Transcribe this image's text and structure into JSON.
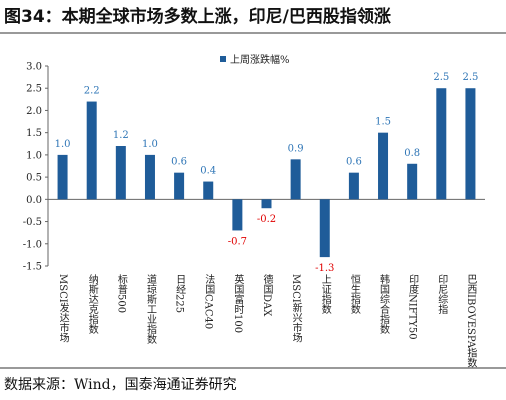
{
  "chart_data": {
    "type": "bar",
    "title": "图34：本期全球市场多数上涨，印尼/巴西股指领涨",
    "source": "数据来源：Wind，国泰海通证券研究",
    "categories": [
      "MSCI发达市场",
      "纳斯达克指数",
      "标普500",
      "道琼斯工业指数",
      "日经225",
      "法国CAC40",
      "英国富时100",
      "德国DAX",
      "MSCI新兴市场",
      "上证指数",
      "恒生指数",
      "韩国综合指数",
      "印度NIFTY50",
      "印尼综指",
      "巴西IBOVESPA指数"
    ],
    "series": [
      {
        "name": "上周涨跌幅%",
        "color": "#1f5c99",
        "values": [
          1.0,
          2.2,
          1.2,
          1.0,
          0.6,
          0.4,
          -0.7,
          -0.2,
          0.9,
          -1.3,
          0.6,
          1.5,
          0.8,
          2.5,
          2.5
        ],
        "value_labels": [
          "1.0",
          "2.2",
          "1.2",
          "1.0",
          "0.6",
          "0.4",
          "-0.7",
          "-0.2",
          "0.9",
          "-1.3",
          "0.6",
          "1.5",
          "0.8",
          "2.5",
          "2.5"
        ]
      }
    ],
    "ylim": [
      -1.5,
      3.0
    ],
    "yticks": [
      {
        "value": 3.0,
        "label": "3.0"
      },
      2.5,
      {
        "value": 2.0,
        "label": "2.0"
      },
      1.5,
      {
        "value": 1.0,
        "label": "1.0"
      },
      0.5,
      {
        "value": 0.0,
        "label": "0.0"
      },
      -0.5,
      {
        "value": -1.0,
        "label": "-1.0"
      },
      -1.5
    ],
    "grid": false
  }
}
